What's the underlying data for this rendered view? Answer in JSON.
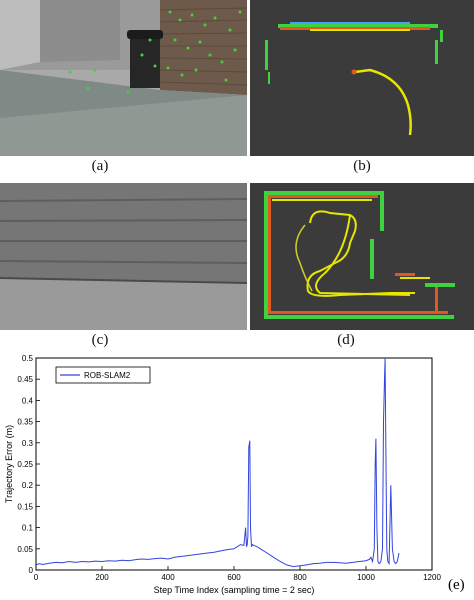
{
  "captions": {
    "a": "(a)",
    "b": "(b)",
    "c": "(c)",
    "d": "(d)",
    "e": "(e)"
  },
  "colors": {
    "trajectory": "#e6e600",
    "feature_points": "#3fd13f",
    "map_background": "#3b3b3b",
    "series_line": "#3344dd"
  },
  "chart_data": {
    "type": "line",
    "ylabel": "Trajectory Error (m)",
    "xlabel": "Step Time Index (sampling time = 2 sec)",
    "xlim": [
      0,
      1200
    ],
    "ylim": [
      0,
      0.5
    ],
    "xticks": [
      "0",
      "200",
      "400",
      "600",
      "800",
      "1000",
      "1200"
    ],
    "yticks": [
      "0",
      "0.05",
      "0.1",
      "0.15",
      "0.2",
      "0.25",
      "0.3",
      "0.35",
      "0.4",
      "0.45",
      "0.5"
    ],
    "legend": "top-left",
    "grid": false,
    "series": [
      {
        "name": "ROB-SLAM2",
        "x": [
          0,
          10,
          20,
          40,
          60,
          80,
          100,
          120,
          140,
          160,
          180,
          200,
          220,
          240,
          260,
          280,
          300,
          320,
          340,
          360,
          380,
          400,
          420,
          440,
          460,
          480,
          500,
          520,
          540,
          560,
          580,
          600,
          610,
          620,
          630,
          635,
          638,
          640,
          642,
          645,
          648,
          650,
          653,
          656,
          660,
          670,
          680,
          700,
          720,
          740,
          760,
          780,
          800,
          820,
          840,
          860,
          880,
          900,
          920,
          940,
          960,
          980,
          1000,
          1010,
          1015,
          1020,
          1025,
          1028,
          1030,
          1033,
          1036,
          1040,
          1045,
          1050,
          1053,
          1056,
          1058,
          1060,
          1063,
          1066,
          1070,
          1075,
          1080,
          1085,
          1090,
          1095,
          1100
        ],
        "y": [
          0.012,
          0.015,
          0.013,
          0.016,
          0.018,
          0.017,
          0.02,
          0.018,
          0.02,
          0.019,
          0.021,
          0.02,
          0.022,
          0.021,
          0.023,
          0.022,
          0.024,
          0.026,
          0.025,
          0.027,
          0.028,
          0.026,
          0.03,
          0.032,
          0.034,
          0.036,
          0.038,
          0.04,
          0.042,
          0.045,
          0.048,
          0.05,
          0.055,
          0.06,
          0.058,
          0.1,
          0.055,
          0.06,
          0.08,
          0.29,
          0.305,
          0.1,
          0.055,
          0.06,
          0.058,
          0.055,
          0.05,
          0.04,
          0.03,
          0.02,
          0.012,
          0.008,
          0.01,
          0.012,
          0.015,
          0.016,
          0.018,
          0.018,
          0.017,
          0.016,
          0.018,
          0.02,
          0.022,
          0.025,
          0.03,
          0.02,
          0.05,
          0.25,
          0.31,
          0.1,
          0.02,
          0.015,
          0.02,
          0.05,
          0.35,
          0.45,
          0.5,
          0.3,
          0.05,
          0.02,
          0.015,
          0.2,
          0.05,
          0.02,
          0.015,
          0.02,
          0.04
        ]
      }
    ]
  }
}
